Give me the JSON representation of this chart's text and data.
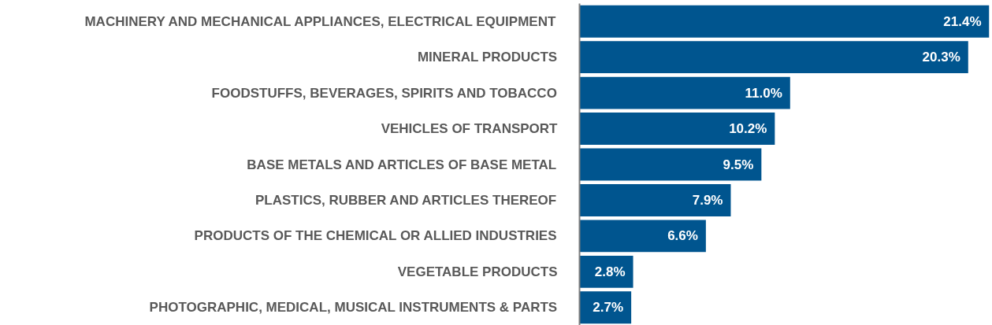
{
  "chart_data": {
    "type": "bar",
    "orientation": "horizontal",
    "categories": [
      "MACHINERY AND MECHANICAL APPLIANCES, ELECTRICAL EQUIPMENT",
      "MINERAL PRODUCTS",
      "FOODSTUFFS, BEVERAGES, SPIRITS AND TOBACCO",
      "VEHICLES OF TRANSPORT",
      "BASE METALS AND ARTICLES OF BASE METAL",
      "PLASTICS, RUBBER AND ARTICLES THEREOF",
      "PRODUCTS OF THE CHEMICAL OR ALLIED INDUSTRIES",
      "VEGETABLE PRODUCTS",
      "PHOTOGRAPHIC, MEDICAL, MUSICAL INSTRUMENTS & PARTS"
    ],
    "values": [
      21.4,
      20.3,
      11.0,
      10.2,
      9.5,
      7.9,
      6.6,
      2.8,
      2.7
    ],
    "value_labels": [
      "21.4%",
      "20.3%",
      "11.0%",
      "10.2%",
      "9.5%",
      "7.9%",
      "6.6%",
      "2.8%",
      "2.7%"
    ],
    "color": "#00558f",
    "xlim": [
      0,
      21.4
    ],
    "tick_labels": "y",
    "grid": false
  }
}
